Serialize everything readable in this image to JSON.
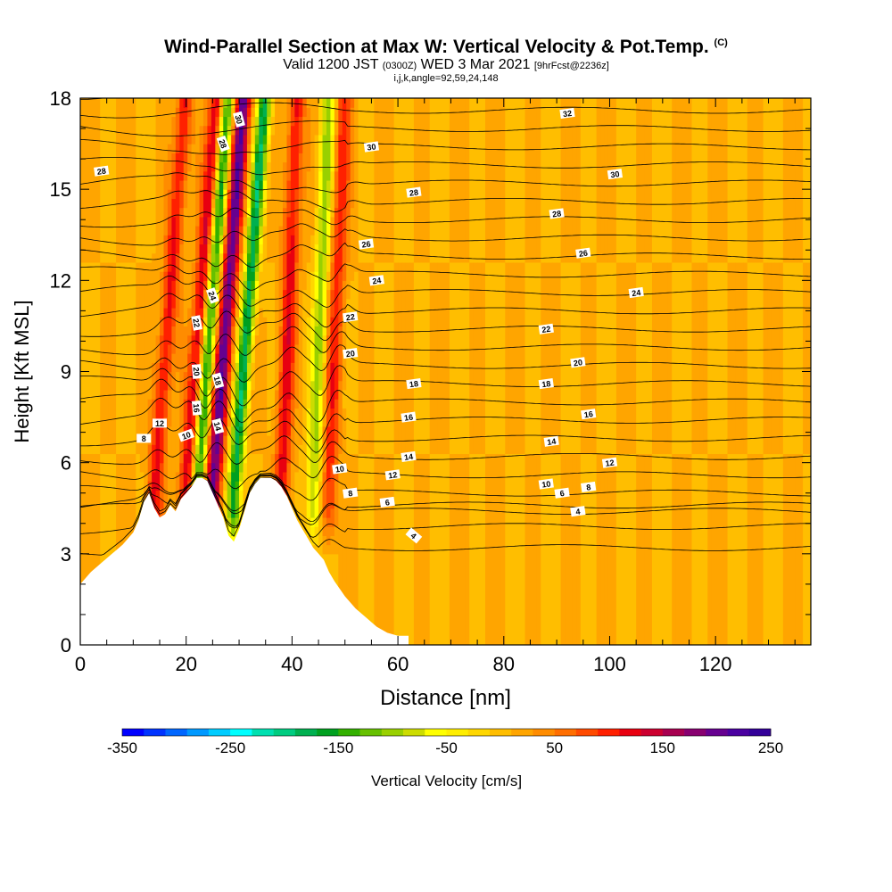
{
  "title": {
    "main": "Wind-Parallel Section at Max W: Vertical Velocity & Pot.Temp.",
    "main_unit": "(C)",
    "valid_prefix": "Valid 1200 JST",
    "valid_utc": "(0300Z)",
    "valid_date": "WED 3 Mar 2021",
    "forecast": "[9hrFcst@2236z]",
    "indices": "i,j,k,angle=92,59,24,148"
  },
  "chart_data": {
    "type": "heatmap",
    "xlabel": "Distance [nm]",
    "ylabel": "Height [Kft MSL]",
    "xlim": [
      0,
      138
    ],
    "ylim": [
      0,
      18
    ],
    "x_ticks": [
      0,
      20,
      40,
      60,
      80,
      100,
      120
    ],
    "y_ticks": [
      0,
      3,
      6,
      9,
      12,
      15,
      18
    ],
    "colorbar": {
      "label": "Vertical Velocity [cm/s]",
      "tick_labels": [
        -350,
        -250,
        -150,
        -50,
        50,
        150,
        250
      ],
      "range": [
        -350,
        250
      ],
      "step": 20,
      "colors": [
        "#0000ff",
        "#0033ff",
        "#0066ff",
        "#0099ff",
        "#00ccff",
        "#00ffff",
        "#00e0b0",
        "#00cc80",
        "#00b050",
        "#00a020",
        "#33b000",
        "#66c000",
        "#99d000",
        "#ccdc00",
        "#ffff00",
        "#ffee00",
        "#ffd700",
        "#ffbe00",
        "#ffa500",
        "#ff8c00",
        "#ff6e00",
        "#ff4a00",
        "#ff2000",
        "#e80010",
        "#cc0030",
        "#a80050",
        "#880070",
        "#660090",
        "#4a00a0",
        "#330099"
      ]
    },
    "terrain_profile": {
      "distance_nm": [
        0,
        2,
        4,
        6,
        8,
        10,
        11,
        12,
        13,
        14,
        15,
        16,
        17,
        18,
        19,
        20,
        21,
        22,
        23,
        24,
        25,
        26,
        27,
        28,
        29,
        30,
        31,
        32,
        33,
        34,
        35,
        36,
        37,
        38,
        39,
        40,
        41,
        42,
        43,
        44,
        45,
        46,
        47,
        48,
        50,
        52,
        54,
        56,
        58,
        60,
        62
      ],
      "height_kft": [
        2.0,
        2.4,
        2.7,
        3.0,
        3.3,
        3.7,
        4.1,
        4.7,
        5.0,
        4.5,
        4.2,
        4.3,
        4.6,
        4.4,
        4.8,
        5.0,
        5.2,
        5.5,
        5.5,
        5.4,
        5.0,
        4.6,
        4.2,
        3.6,
        3.4,
        3.8,
        4.4,
        5.0,
        5.3,
        5.5,
        5.5,
        5.5,
        5.4,
        5.2,
        4.9,
        4.5,
        4.1,
        3.8,
        3.5,
        3.2,
        3.0,
        2.8,
        2.4,
        2.1,
        1.6,
        1.2,
        0.9,
        0.6,
        0.4,
        0.3,
        0.3
      ]
    },
    "updraft_bands": [
      {
        "center_nm": 14,
        "velocity_cm_s": 110
      },
      {
        "center_nm": 20,
        "velocity_cm_s": 130
      },
      {
        "center_nm": 25,
        "velocity_cm_s": 190
      },
      {
        "center_nm": 38,
        "velocity_cm_s": 110
      },
      {
        "center_nm": 47,
        "velocity_cm_s": 90
      }
    ],
    "downdraft_bands": [
      {
        "center_nm": 22,
        "velocity_cm_s": -170
      },
      {
        "center_nm": 29,
        "velocity_cm_s": -190
      },
      {
        "center_nm": 44,
        "velocity_cm_s": -110
      }
    ],
    "background_velocity_cm_s": 10,
    "isentropes": [
      {
        "theta_c": 4,
        "label_positions": [
          [
            63,
            3.6
          ],
          [
            94,
            4.4
          ]
        ]
      },
      {
        "theta_c": 6,
        "label_positions": [
          [
            58,
            4.7
          ],
          [
            91,
            5.0
          ]
        ]
      },
      {
        "theta_c": 8,
        "label_positions": [
          [
            12,
            6.8
          ],
          [
            51,
            5.0
          ],
          [
            96,
            5.2
          ]
        ]
      },
      {
        "theta_c": 10,
        "label_positions": [
          [
            20,
            6.9
          ],
          [
            49,
            5.8
          ],
          [
            88,
            5.3
          ]
        ]
      },
      {
        "theta_c": 12,
        "label_positions": [
          [
            15,
            7.3
          ],
          [
            59,
            5.6
          ],
          [
            100,
            6.0
          ]
        ]
      },
      {
        "theta_c": 14,
        "label_positions": [
          [
            26,
            7.2
          ],
          [
            62,
            6.2
          ],
          [
            89,
            6.7
          ]
        ]
      },
      {
        "theta_c": 16,
        "label_positions": [
          [
            22,
            7.8
          ],
          [
            62,
            7.5
          ],
          [
            96,
            7.6
          ]
        ]
      },
      {
        "theta_c": 18,
        "label_positions": [
          [
            26,
            8.7
          ],
          [
            63,
            8.6
          ],
          [
            88,
            8.6
          ]
        ]
      },
      {
        "theta_c": 20,
        "label_positions": [
          [
            22,
            9.0
          ],
          [
            51,
            9.6
          ],
          [
            94,
            9.3
          ]
        ]
      },
      {
        "theta_c": 22,
        "label_positions": [
          [
            22,
            10.6
          ],
          [
            51,
            10.8
          ],
          [
            88,
            10.4
          ]
        ]
      },
      {
        "theta_c": 24,
        "label_positions": [
          [
            25,
            11.5
          ],
          [
            56,
            12.0
          ],
          [
            105,
            11.6
          ]
        ]
      },
      {
        "theta_c": 26,
        "label_positions": [
          [
            54,
            13.2
          ],
          [
            95,
            12.9
          ]
        ]
      },
      {
        "theta_c": 28,
        "label_positions": [
          [
            4,
            15.6
          ],
          [
            27,
            16.5
          ],
          [
            63,
            14.9
          ],
          [
            90,
            14.2
          ]
        ]
      },
      {
        "theta_c": 30,
        "label_positions": [
          [
            30,
            17.3
          ],
          [
            55,
            16.4
          ],
          [
            101,
            15.5
          ]
        ]
      },
      {
        "theta_c": 32,
        "label_positions": [
          [
            92,
            17.5
          ]
        ]
      }
    ],
    "isentrope_label_rotation_deg": {
      "28@27": 70,
      "30@30": 75,
      "26@27": 70,
      "24@25": 70,
      "22@22": 80,
      "20@22": 85,
      "18@26": 75,
      "16@22": 85,
      "14@26": 75,
      "10@20": -20,
      "12@15": 0,
      "8@12": 0,
      "4@63": 40
    }
  }
}
